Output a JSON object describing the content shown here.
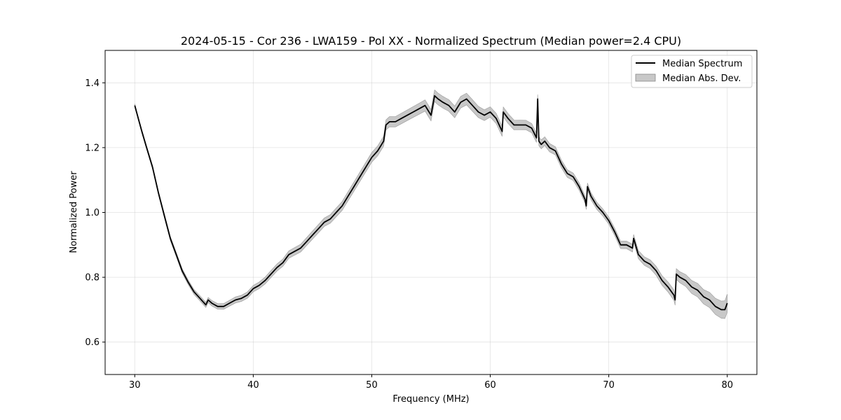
{
  "chart_data": {
    "type": "line",
    "title": "2024-05-15 - Cor 236 - LWA159 - Pol XX - Normalized Spectrum (Median power=2.4 CPU)",
    "xlabel": "Frequency (MHz)",
    "ylabel": "Normalized Power",
    "xlim": [
      27.5,
      82.5
    ],
    "ylim": [
      0.5,
      1.5
    ],
    "xticks": [
      30,
      40,
      50,
      60,
      70,
      80
    ],
    "yticks": [
      0.6,
      0.8,
      1.0,
      1.2,
      1.4
    ],
    "xtick_labels": [
      "30",
      "40",
      "50",
      "60",
      "70",
      "80"
    ],
    "ytick_labels": [
      "0.6",
      "0.8",
      "1.0",
      "1.2",
      "1.4"
    ],
    "grid": true,
    "legend_position": "top-right",
    "colors": {
      "line": "#000000",
      "band": "#aaaaaa"
    },
    "series": [
      {
        "name": "Median Spectrum",
        "kind": "line",
        "x": [
          30.0,
          30.3,
          30.6,
          31.0,
          31.5,
          32.0,
          32.5,
          33.0,
          33.5,
          34.0,
          34.5,
          35.0,
          35.5,
          36.0,
          36.2,
          36.5,
          37.0,
          37.5,
          38.0,
          38.5,
          39.0,
          39.5,
          40.0,
          40.5,
          41.0,
          41.5,
          42.0,
          42.5,
          43.0,
          43.5,
          44.0,
          44.5,
          45.0,
          45.5,
          46.0,
          46.5,
          47.0,
          47.5,
          48.0,
          48.5,
          49.0,
          49.5,
          50.0,
          50.5,
          51.0,
          51.2,
          51.5,
          52.0,
          52.5,
          53.0,
          53.5,
          54.0,
          54.5,
          55.0,
          55.3,
          55.6,
          56.0,
          56.5,
          57.0,
          57.5,
          58.0,
          58.5,
          59.0,
          59.5,
          60.0,
          60.5,
          61.0,
          61.1,
          61.5,
          62.0,
          62.5,
          63.0,
          63.5,
          63.9,
          64.0,
          64.1,
          64.3,
          64.6,
          65.0,
          65.5,
          66.0,
          66.5,
          67.0,
          67.5,
          68.0,
          68.1,
          68.2,
          68.5,
          69.0,
          69.5,
          70.0,
          70.5,
          71.0,
          71.5,
          72.0,
          72.1,
          72.5,
          73.0,
          73.5,
          74.0,
          74.5,
          75.0,
          75.5,
          75.6,
          75.7,
          76.0,
          76.5,
          77.0,
          77.5,
          78.0,
          78.5,
          79.0,
          79.5,
          79.8,
          80.0
        ],
        "y": [
          1.33,
          1.29,
          1.25,
          1.2,
          1.14,
          1.06,
          0.99,
          0.92,
          0.87,
          0.82,
          0.785,
          0.755,
          0.735,
          0.715,
          0.73,
          0.72,
          0.71,
          0.71,
          0.72,
          0.73,
          0.735,
          0.745,
          0.765,
          0.775,
          0.79,
          0.81,
          0.83,
          0.845,
          0.87,
          0.88,
          0.89,
          0.91,
          0.93,
          0.95,
          0.97,
          0.98,
          1.0,
          1.02,
          1.05,
          1.08,
          1.11,
          1.14,
          1.17,
          1.19,
          1.22,
          1.27,
          1.28,
          1.28,
          1.29,
          1.3,
          1.31,
          1.32,
          1.33,
          1.3,
          1.36,
          1.35,
          1.34,
          1.33,
          1.31,
          1.34,
          1.35,
          1.33,
          1.31,
          1.3,
          1.31,
          1.29,
          1.25,
          1.31,
          1.29,
          1.27,
          1.27,
          1.27,
          1.26,
          1.23,
          1.35,
          1.22,
          1.21,
          1.22,
          1.2,
          1.19,
          1.15,
          1.12,
          1.11,
          1.08,
          1.04,
          1.02,
          1.08,
          1.05,
          1.02,
          1.0,
          0.975,
          0.94,
          0.9,
          0.9,
          0.89,
          0.92,
          0.87,
          0.85,
          0.84,
          0.82,
          0.79,
          0.77,
          0.745,
          0.73,
          0.81,
          0.8,
          0.79,
          0.77,
          0.76,
          0.74,
          0.73,
          0.71,
          0.7,
          0.7,
          0.72
        ]
      },
      {
        "name": "Median Abs. Dev.",
        "kind": "band",
        "x": [
          30.0,
          32.0,
          34.0,
          36.0,
          38.0,
          40.0,
          42.0,
          44.0,
          46.0,
          48.0,
          50.0,
          52.0,
          54.0,
          55.5,
          57.0,
          58.5,
          60.0,
          62.0,
          64.0,
          66.0,
          68.0,
          70.0,
          72.0,
          74.0,
          76.0,
          77.0,
          78.0,
          79.0,
          80.0
        ],
        "dev": [
          0.005,
          0.006,
          0.007,
          0.008,
          0.009,
          0.01,
          0.011,
          0.012,
          0.013,
          0.014,
          0.015,
          0.016,
          0.017,
          0.018,
          0.018,
          0.018,
          0.016,
          0.015,
          0.014,
          0.012,
          0.011,
          0.011,
          0.012,
          0.014,
          0.017,
          0.02,
          0.022,
          0.025,
          0.028
        ]
      }
    ]
  }
}
